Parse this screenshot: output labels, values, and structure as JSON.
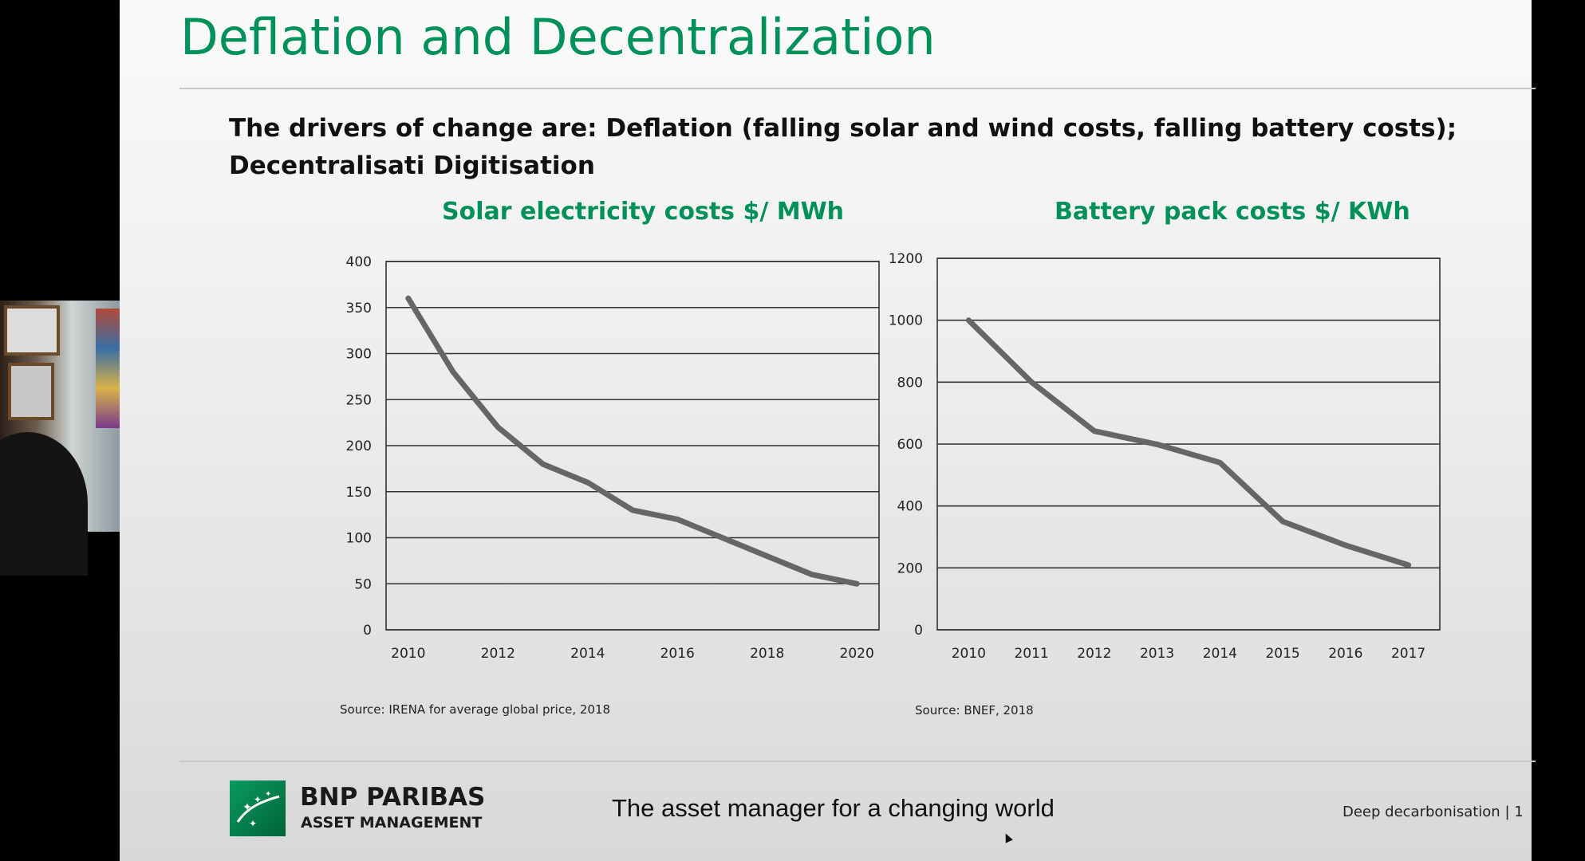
{
  "slide": {
    "title": "Deflation and Decentralization",
    "subtitle": "The drivers of change are: Deflation (falling solar and wind costs, falling battery costs); Decentralisati Digitisation",
    "tagline": "The asset manager for a changing world",
    "footer_label": "Deep decarbonisation  |  1",
    "brand": {
      "line1": "BNP PARIBAS",
      "line2": "ASSET MANAGEMENT",
      "logo_icon": "bnp-stars-logo-icon",
      "logo_color": "#00915a"
    },
    "accent_color": "#00915a",
    "line_color": "#666666"
  },
  "chart_data": [
    {
      "type": "line",
      "title": "Solar electricity costs $/ MWh",
      "source": "Source: IRENA for average global price, 2018",
      "xlim": [
        2010,
        2020
      ],
      "ylim": [
        0,
        400
      ],
      "x_ticks": [
        2010,
        2012,
        2014,
        2016,
        2018,
        2020
      ],
      "y_ticks": [
        0,
        50,
        100,
        150,
        200,
        250,
        300,
        350,
        400
      ],
      "grid": true,
      "series": [
        {
          "x": [
            2010,
            2011,
            2012,
            2013,
            2014,
            2015,
            2016,
            2017,
            2018,
            2019,
            2020
          ],
          "values": [
            360,
            280,
            220,
            180,
            160,
            130,
            120,
            100,
            80,
            60,
            50
          ]
        }
      ]
    },
    {
      "type": "line",
      "title": "Battery pack costs $/ KWh",
      "source": "Source: BNEF, 2018",
      "categories": [
        "2010",
        "2011",
        "2012",
        "2013",
        "2014",
        "2015",
        "2016",
        "2017"
      ],
      "ylim": [
        0,
        1200
      ],
      "y_ticks": [
        0,
        200,
        400,
        600,
        800,
        1000,
        1200
      ],
      "grid": true,
      "series": [
        {
          "values": [
            1000,
            800,
            642,
            599,
            540,
            350,
            273,
            209
          ]
        }
      ]
    }
  ]
}
